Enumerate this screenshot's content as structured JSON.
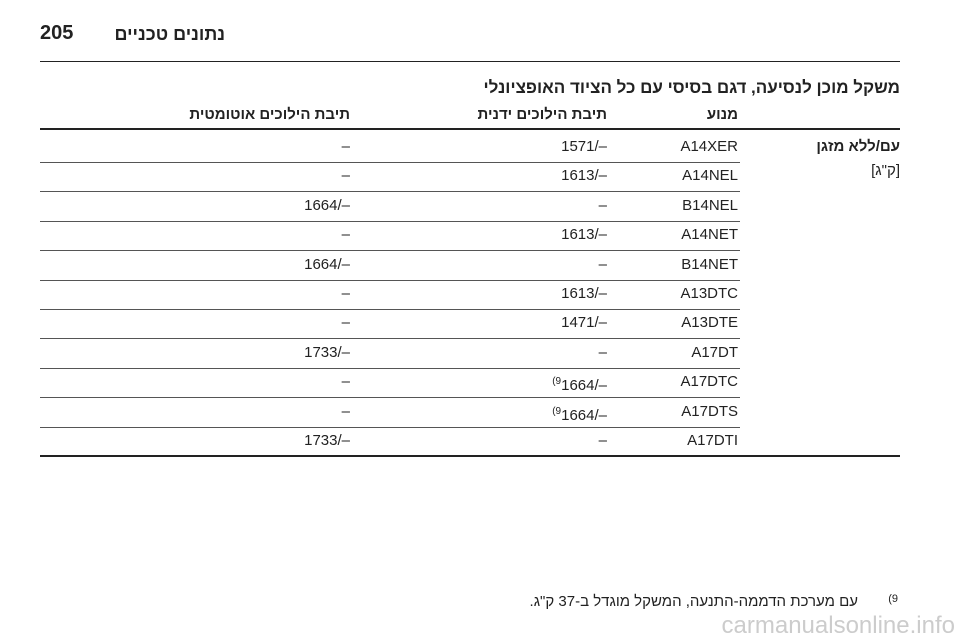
{
  "header": {
    "page_number": "205",
    "title": "נתונים טכניים"
  },
  "section_title": "משקל מוכן לנסיעה, דגם בסיסי עם כל הציוד האופציונלי",
  "table": {
    "columns": [
      "מנוע",
      "תיבת הילוכים ידנית",
      "תיבת הילוכים אוטומטית"
    ],
    "row_label": "עם/ללא מזגן",
    "unit": "[ק\"ג]",
    "rows": [
      {
        "engine": "A14XER",
        "manual": "1571/–",
        "auto": "–"
      },
      {
        "engine": "A14NEL",
        "manual": "1613/–",
        "auto": "–"
      },
      {
        "engine": "B14NEL",
        "manual": "–",
        "auto": "1664/–"
      },
      {
        "engine": "A14NET",
        "manual": "1613/–",
        "auto": "–"
      },
      {
        "engine": "B14NET",
        "manual": "–",
        "auto": "1664/–"
      },
      {
        "engine": "A13DTC",
        "manual": "1613/–",
        "auto": "–"
      },
      {
        "engine": "A13DTE",
        "manual": "1471/–",
        "auto": "–"
      },
      {
        "engine": "A17DT",
        "manual": "–",
        "auto": "1733/–"
      },
      {
        "engine": "A17DTC",
        "manual_note": "(9",
        "manual": "1664/–",
        "auto": "–"
      },
      {
        "engine": "A17DTS",
        "manual_note": "(9",
        "manual": "1664/–",
        "auto": "–"
      },
      {
        "engine": "A17DTI",
        "manual": "–",
        "auto": "1733/–"
      }
    ]
  },
  "footnote": {
    "marker": "(9",
    "text": "עם מערכת הדממה-התנעה, המשקל מוגדל ב-37 ק\"ג."
  },
  "watermark": "carmanualsonline.info"
}
